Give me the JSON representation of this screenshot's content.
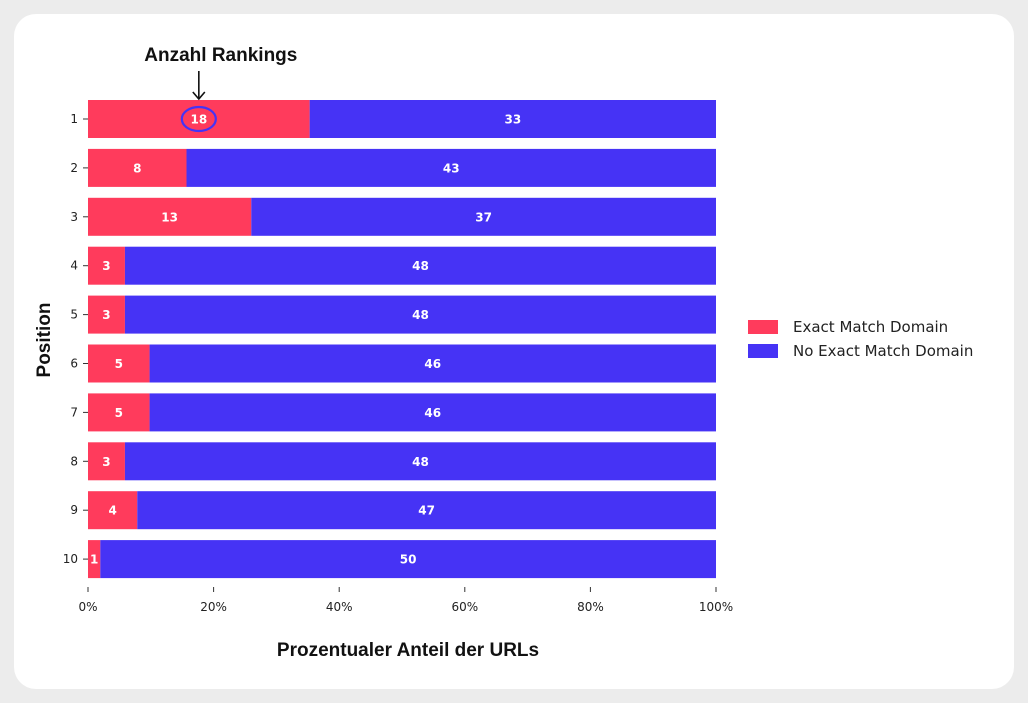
{
  "chart_data": {
    "type": "bar",
    "orientation": "horizontal",
    "stacked": "percent",
    "categories": [
      "1",
      "2",
      "3",
      "4",
      "5",
      "6",
      "7",
      "8",
      "9",
      "10"
    ],
    "series": [
      {
        "name": "Exact Match Domain",
        "color": "#ff3b5c",
        "values": [
          18,
          8,
          13,
          3,
          3,
          5,
          5,
          3,
          4,
          1
        ]
      },
      {
        "name": "No Exact Match Domain",
        "color": "#4633f5",
        "values": [
          33,
          43,
          37,
          48,
          48,
          46,
          46,
          48,
          47,
          50
        ]
      }
    ],
    "xlabel": "Prozentualer Anteil der URLs",
    "ylabel": "Position",
    "xticks": [
      "0%",
      "20%",
      "40%",
      "60%",
      "80%",
      "100%"
    ],
    "xlim": [
      0,
      100
    ],
    "legend_position": "right",
    "annotation": {
      "text": "Anzahl Rankings",
      "target_category": "1",
      "target_series": "Exact Match Domain"
    }
  }
}
